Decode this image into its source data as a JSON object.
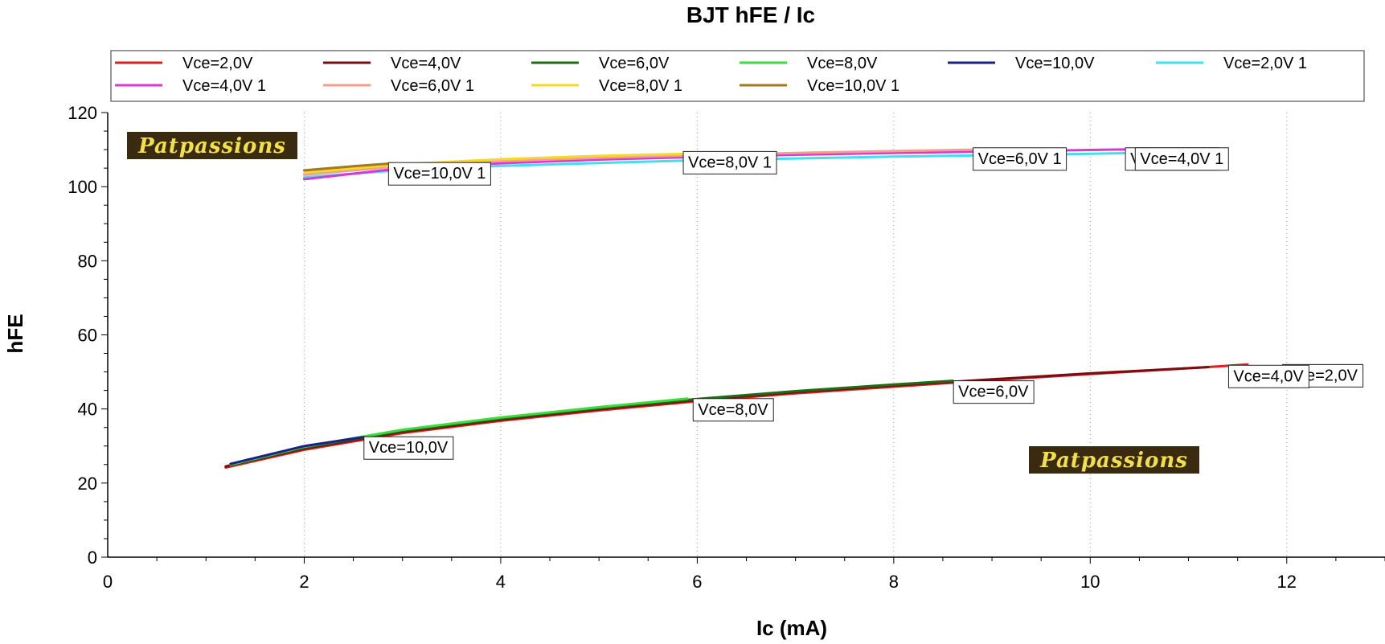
{
  "chart_data": {
    "type": "line",
    "title": "BJT hFE / Ic",
    "xlabel": "Ic (mA)",
    "ylabel": "hFE",
    "xlim": [
      0,
      13
    ],
    "ylim": [
      0,
      120
    ],
    "x_ticks": [
      0,
      2,
      4,
      6,
      8,
      10,
      12
    ],
    "y_ticks": [
      0,
      20,
      40,
      60,
      80,
      100,
      120
    ],
    "grid": "vertical-dotted",
    "legend_position": "top",
    "watermark": "Patpassions",
    "series": [
      {
        "name": "Vce=2,0V",
        "color": "#e0201c",
        "x": [
          1.2,
          2,
          3,
          4,
          5,
          6,
          7,
          8,
          9,
          10,
          11,
          11.6
        ],
        "y": [
          24.2,
          29,
          33.5,
          36.8,
          39.6,
          42.1,
          44.2,
          46.0,
          47.8,
          49.4,
          51.0,
          52.0
        ]
      },
      {
        "name": "Vce=4,0V",
        "color": "#7a0c12",
        "x": [
          1.2,
          2,
          3,
          4,
          5,
          6,
          7,
          8,
          9,
          10,
          11.2
        ],
        "y": [
          24.5,
          29.3,
          33.8,
          37.1,
          39.9,
          42.4,
          44.5,
          46.3,
          48.0,
          49.6,
          51.3
        ]
      },
      {
        "name": "Vce=6,0V",
        "color": "#1d6e12",
        "x": [
          1.25,
          2,
          3,
          4,
          5,
          6,
          7,
          8,
          8.6
        ],
        "y": [
          24.8,
          29.6,
          34.1,
          37.4,
          40.2,
          42.7,
          44.8,
          46.6,
          47.6
        ]
      },
      {
        "name": "Vce=8,0V",
        "color": "#3edb3e",
        "x": [
          1.25,
          2,
          3,
          4,
          5,
          5.9
        ],
        "y": [
          25.0,
          29.8,
          34.4,
          37.7,
          40.5,
          42.8
        ]
      },
      {
        "name": "Vce=10,0V",
        "color": "#1a1f8a",
        "x": [
          1.25,
          2,
          2.6
        ],
        "y": [
          25.2,
          30.0,
          32.4
        ]
      },
      {
        "name": "Vce=2,0V 1",
        "color": "#3fe0f0",
        "x": [
          2,
          3,
          4,
          5,
          6,
          7,
          8,
          9,
          10,
          10.5
        ],
        "y": [
          102.5,
          104.5,
          105.6,
          106.4,
          107.1,
          107.6,
          108.1,
          108.5,
          108.9,
          109.1
        ]
      },
      {
        "name": "Vce=4,0V 1",
        "color": "#d838d8",
        "x": [
          2,
          3,
          4,
          5,
          6,
          7,
          8,
          9,
          10,
          10.5
        ],
        "y": [
          102.0,
          105.0,
          106.3,
          107.3,
          108.0,
          108.6,
          109.1,
          109.5,
          109.9,
          110.1
        ]
      },
      {
        "name": "Vce=6,0V 1",
        "color": "#f0a090",
        "x": [
          2,
          3,
          4,
          5,
          6,
          7,
          8,
          8.8
        ],
        "y": [
          103.2,
          105.6,
          106.9,
          107.8,
          108.5,
          109.1,
          109.6,
          110.0
        ]
      },
      {
        "name": "Vce=8,0V 1",
        "color": "#f5d82a",
        "x": [
          2,
          3,
          4,
          5,
          5.9
        ],
        "y": [
          103.8,
          106.1,
          107.4,
          108.3,
          108.9
        ]
      },
      {
        "name": "Vce=10,0V 1",
        "color": "#a07a1c",
        "x": [
          2,
          2.5,
          2.9
        ],
        "y": [
          104.4,
          105.5,
          106.3
        ]
      }
    ],
    "annotations": [
      {
        "text": "Vce=10,0V 1",
        "x": 2.85,
        "y": 106.5
      },
      {
        "text": "Vce=8,0V 1",
        "x": 5.85,
        "y": 109.5
      },
      {
        "text": "Vce=6,0V 1",
        "x": 8.8,
        "y": 110.5
      },
      {
        "text": "Vce=2,0V 1",
        "x": 10.35,
        "y": 110.5
      },
      {
        "text": "Vce=4,0V 1",
        "x": 10.45,
        "y": 110.5
      },
      {
        "text": "Vce=10,0V",
        "x": 2.6,
        "y": 32.5
      },
      {
        "text": "Vce=8,0V",
        "x": 5.95,
        "y": 42.8
      },
      {
        "text": "Vce=6,0V",
        "x": 8.6,
        "y": 47.6
      },
      {
        "text": "Vce=2,0V",
        "x": 11.95,
        "y": 52.0
      },
      {
        "text": "Vce=4,0V",
        "x": 11.4,
        "y": 51.8
      }
    ]
  }
}
